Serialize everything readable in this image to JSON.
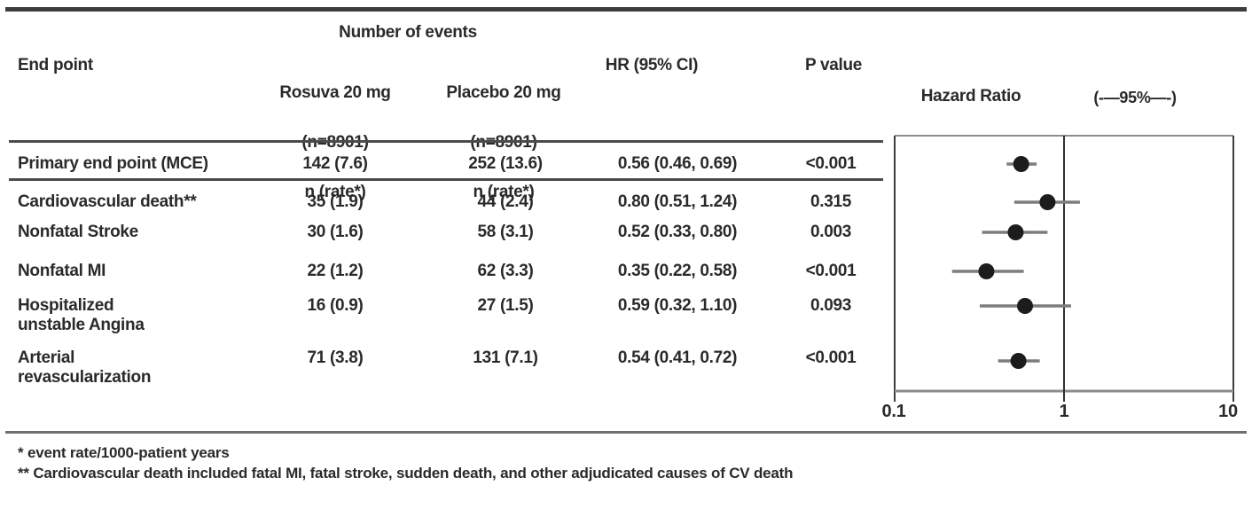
{
  "figure": {
    "group_header": "Number of events",
    "columns": {
      "endpoint": "End point",
      "rosuva": [
        "Rosuva 20 mg",
        "(n=8901)",
        "n (rate*)"
      ],
      "placebo": [
        "Placebo 20 mg",
        "(n=8901)",
        "n (rate*)"
      ],
      "hr": "HR (95% CI)",
      "p": "P value"
    },
    "rows": [
      {
        "endpoint": "Primary end point (MCE)",
        "rosuva": "142 (7.6)",
        "placebo": "252 (13.6)",
        "hr_ci": "0.56 (0.46, 0.69)",
        "p": "<0.001"
      },
      {
        "endpoint": "Cardiovascular death**",
        "rosuva": "35 (1.9)",
        "placebo": "44 (2.4)",
        "hr_ci": "0.80 (0.51, 1.24)",
        "p": "0.315"
      },
      {
        "endpoint": "Nonfatal Stroke",
        "rosuva": "30 (1.6)",
        "placebo": "58 (3.1)",
        "hr_ci": "0.52 (0.33, 0.80)",
        "p": "0.003"
      },
      {
        "endpoint": "Nonfatal MI",
        "rosuva": "22 (1.2)",
        "placebo": "62 (3.3)",
        "hr_ci": "0.35 (0.22, 0.58)",
        "p": "<0.001"
      },
      {
        "endpoint": "Hospitalized\nunstable Angina",
        "rosuva": "16 (0.9)",
        "placebo": "27 (1.5)",
        "hr_ci": "0.59 (0.32, 1.10)",
        "p": "0.093"
      },
      {
        "endpoint": "Arterial\nrevascularization",
        "rosuva": "71 (3.8)",
        "placebo": "131 (7.1)",
        "hr_ci": "0.54 (0.41, 0.72)",
        "p": "<0.001"
      }
    ],
    "footnotes": [
      "* event rate/1000-patient years",
      "** Cardiovascular death included fatal MI, fatal stroke, sudden death, and other adjudicated causes of CV death"
    ]
  },
  "chart_data": {
    "type": "scatter",
    "subtype": "forest-plot",
    "title": "Hazard Ratio",
    "ci_header": "(-—95%—-)",
    "xscale": "log",
    "xlim": [
      0.1,
      10
    ],
    "xticks": [
      0.1,
      1,
      10
    ],
    "xtick_labels": [
      "0.1",
      "1",
      "10"
    ],
    "reference_line": 1,
    "legend_position": "none",
    "grid": false,
    "series": [
      {
        "label": "Primary end point (MCE)",
        "hr": 0.56,
        "ci_low": 0.46,
        "ci_high": 0.69
      },
      {
        "label": "Cardiovascular death**",
        "hr": 0.8,
        "ci_low": 0.51,
        "ci_high": 1.24
      },
      {
        "label": "Nonfatal Stroke",
        "hr": 0.52,
        "ci_low": 0.33,
        "ci_high": 0.8
      },
      {
        "label": "Nonfatal MI",
        "hr": 0.35,
        "ci_low": 0.22,
        "ci_high": 0.58
      },
      {
        "label": "Hospitalized unstable Angina",
        "hr": 0.59,
        "ci_low": 0.32,
        "ci_high": 1.1
      },
      {
        "label": "Arterial revascularization",
        "hr": 0.54,
        "ci_low": 0.41,
        "ci_high": 0.72
      }
    ],
    "colors": {
      "marker": "#1c1c1c",
      "ci_bar": "#7d7d7d",
      "axis": "#8c8c8c",
      "reference_line": "#303030",
      "text": "#2a2a2a"
    }
  }
}
